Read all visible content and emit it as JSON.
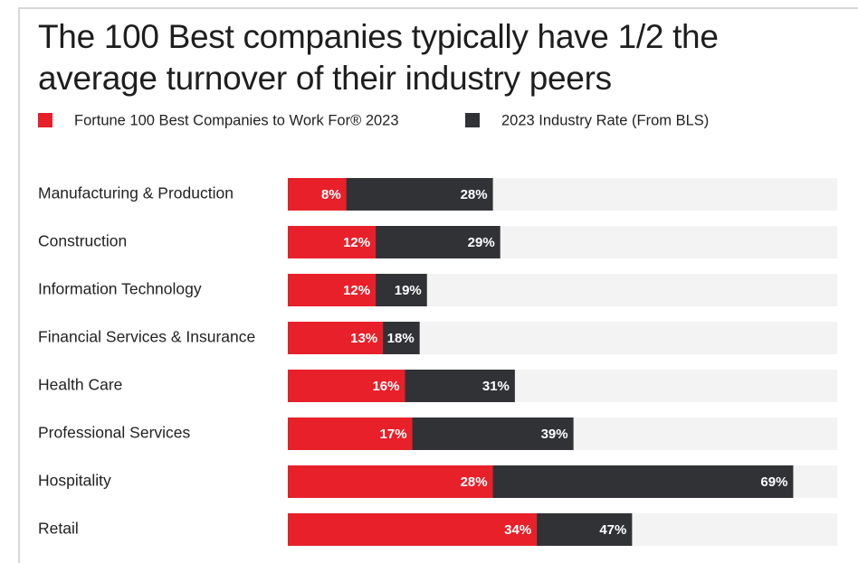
{
  "chart_data": {
    "type": "bar",
    "orientation": "horizontal",
    "title": "The 100 Best companies typically have 1/2 the average turnover of their industry peers",
    "categories": [
      "Manufacturing & Production",
      "Construction",
      "Information Technology",
      "Financial Services & Insurance",
      "Health Care",
      "Professional Services",
      "Hospitality",
      "Retail"
    ],
    "series": [
      {
        "name": "2023 Industry Rate (From BLS)",
        "color": "#303236",
        "values": [
          28,
          29,
          19,
          18,
          31,
          39,
          69,
          47
        ],
        "value_labels": [
          "28%",
          "29%",
          "19%",
          "18%",
          "31%",
          "39%",
          "69%",
          "47%"
        ]
      },
      {
        "name": "Fortune 100 Best Companies to Work For® 2023",
        "color": "#e8202a",
        "values": [
          8,
          12,
          12,
          13,
          16,
          17,
          28,
          34
        ],
        "value_labels": [
          "8%",
          "12%",
          "12%",
          "13%",
          "16%",
          "17%",
          "28%",
          "34%"
        ]
      }
    ],
    "xlim": [
      0,
      75
    ],
    "track_color": "#f3f3f3"
  }
}
